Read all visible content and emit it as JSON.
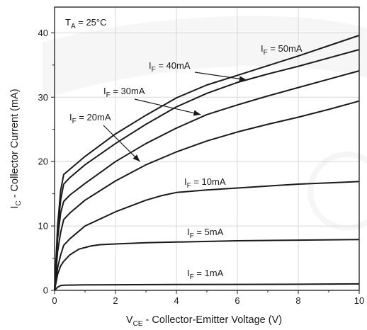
{
  "chart_data": {
    "type": "line",
    "xlabel": {
      "main": "V",
      "sub": "CE",
      "rest": " - Collector-Emitter Voltage (V)"
    },
    "ylabel": {
      "main": "I",
      "sub": "C",
      "rest": " - Collector Current (mA)"
    },
    "xlim": [
      0,
      10
    ],
    "ylim": [
      0,
      44
    ],
    "x_ticks": [
      "0",
      "2",
      "4",
      "6",
      "8",
      "10"
    ],
    "y_ticks": [
      "0",
      "10",
      "20",
      "30",
      "40"
    ],
    "condition": {
      "main": "T",
      "sub": "A",
      "rest": " = 25°C"
    },
    "grid": true,
    "series": [
      {
        "label_main": "I",
        "label_sub": "F",
        "label_rest": " = 1mA",
        "x": [
          0,
          0.1,
          0.2,
          0.3,
          1,
          2,
          4,
          6,
          8,
          10
        ],
        "y": [
          0,
          0.5,
          0.75,
          0.8,
          0.85,
          0.87,
          0.9,
          0.92,
          0.95,
          1.0
        ]
      },
      {
        "label_main": "I",
        "label_sub": "F",
        "label_rest": " = 5mA",
        "x": [
          0,
          0.1,
          0.2,
          0.3,
          0.5,
          0.8,
          1.2,
          1.5,
          2,
          3,
          4,
          6,
          8,
          10
        ],
        "y": [
          0,
          2.5,
          3.8,
          4.5,
          5.5,
          6.4,
          6.9,
          7.1,
          7.2,
          7.4,
          7.5,
          7.7,
          7.8,
          7.9
        ]
      },
      {
        "label_main": "I",
        "label_sub": "F",
        "label_rest": " = 10mA",
        "x": [
          0,
          0.1,
          0.2,
          0.3,
          0.5,
          1,
          2,
          3,
          3.5,
          4,
          5,
          6,
          7,
          8,
          9,
          10
        ],
        "y": [
          0,
          3.5,
          5.5,
          7,
          8,
          10,
          12.2,
          14,
          14.7,
          15.2,
          15.6,
          15.9,
          16.2,
          16.5,
          16.7,
          16.9
        ]
      },
      {
        "label_main": "I",
        "label_sub": "F",
        "label_rest": " = 20mA",
        "x": [
          0,
          0.1,
          0.2,
          0.3,
          0.5,
          1,
          2,
          3,
          4,
          5,
          6,
          7,
          8,
          9,
          10
        ],
        "y": [
          0,
          6,
          9,
          11,
          12,
          14,
          17,
          19.5,
          21.5,
          23.2,
          24.6,
          25.8,
          26.9,
          28.1,
          29.4
        ]
      },
      {
        "label_main": "I",
        "label_sub": "F",
        "label_rest": " = 30mA",
        "x": [
          0,
          0.1,
          0.2,
          0.3,
          0.5,
          1,
          2,
          3,
          4,
          5,
          6,
          7,
          8,
          9,
          10
        ],
        "y": [
          0,
          8,
          12,
          13.8,
          14.8,
          16.6,
          20,
          22.8,
          25.2,
          27.3,
          28.8,
          30.2,
          31.5,
          32.8,
          34.1
        ]
      },
      {
        "label_main": "I",
        "label_sub": "F",
        "label_rest": " = 40mA",
        "x": [
          0,
          0.1,
          0.2,
          0.3,
          0.5,
          1,
          2,
          3,
          4,
          5,
          6,
          7,
          8,
          9,
          10
        ],
        "y": [
          0,
          9,
          14,
          16.5,
          17.5,
          19.5,
          22.8,
          25.8,
          28.5,
          30.6,
          32.3,
          33.6,
          34.8,
          36.1,
          37.4
        ]
      },
      {
        "label_main": "I",
        "label_sub": "F",
        "label_rest": " = 50mA",
        "x": [
          0,
          0.1,
          0.2,
          0.3,
          0.5,
          1,
          2,
          3,
          4,
          5,
          6,
          7,
          8,
          9,
          10
        ],
        "y": [
          0,
          10,
          15.5,
          18,
          18.8,
          20.8,
          24.3,
          27.2,
          29.9,
          31.9,
          33.4,
          34.9,
          36.4,
          38,
          39.6
        ]
      }
    ]
  }
}
